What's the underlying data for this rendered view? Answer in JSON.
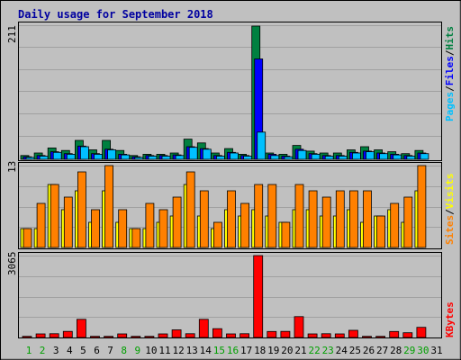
{
  "title": "Daily usage for September 2018",
  "colors": {
    "background": "#c0c0c0",
    "plot_bg": "#c0c0c0",
    "title": "#0000a0",
    "hits": "#008040",
    "files": "#0000ff",
    "pages": "#00c0ff",
    "visits": "#ffff00",
    "sites": "#ff8000",
    "kbytes": "#ff0000",
    "weekend": "#00a000",
    "weekday": "#000000"
  },
  "chart_data": [
    {
      "type": "bar",
      "panel": "top",
      "max_label": "211",
      "ylim": [
        0,
        211
      ],
      "legend": [
        {
          "text": "Pages",
          "color": "#00c0ff"
        },
        {
          "text": "/",
          "color": "#000000"
        },
        {
          "text": "Files",
          "color": "#0000ff"
        },
        {
          "text": "/",
          "color": "#000000"
        },
        {
          "text": "Hits",
          "color": "#008040"
        }
      ],
      "series": [
        {
          "name": "Hits",
          "color": "#008040",
          "values": [
            6,
            10,
            18,
            14,
            30,
            15,
            30,
            14,
            6,
            8,
            8,
            10,
            32,
            26,
            10,
            17,
            8,
            211,
            10,
            8,
            22,
            13,
            10,
            10,
            15,
            20,
            15,
            12,
            9,
            14
          ]
        },
        {
          "name": "Files",
          "color": "#0000ff",
          "values": [
            4,
            6,
            12,
            9,
            21,
            9,
            16,
            8,
            4,
            6,
            6,
            7,
            20,
            17,
            6,
            11,
            6,
            159,
            8,
            5,
            16,
            9,
            6,
            6,
            11,
            13,
            10,
            8,
            6,
            10
          ]
        },
        {
          "name": "Pages",
          "color": "#00c0ff",
          "values": [
            3,
            5,
            11,
            8,
            20,
            8,
            15,
            7,
            3,
            5,
            5,
            6,
            19,
            16,
            5,
            10,
            5,
            43,
            6,
            4,
            14,
            8,
            5,
            5,
            10,
            12,
            9,
            7,
            5,
            9
          ]
        }
      ]
    },
    {
      "type": "bar",
      "panel": "middle",
      "max_label": "13",
      "ylim": [
        0,
        13
      ],
      "legend": [
        {
          "text": "Sites",
          "color": "#ff8000"
        },
        {
          "text": "/",
          "color": "#000000"
        },
        {
          "text": "Visits",
          "color": "#ffff00"
        }
      ],
      "series": [
        {
          "name": "Visits",
          "color": "#ffff00",
          "values": [
            3,
            3,
            10,
            6,
            9,
            4,
            9,
            4,
            3,
            3,
            4,
            5,
            10,
            5,
            3,
            6,
            5,
            6,
            5,
            4,
            6,
            6,
            5,
            5,
            6,
            4,
            5,
            6,
            4,
            9
          ]
        },
        {
          "name": "Sites",
          "color": "#ff8000",
          "values": [
            3,
            7,
            10,
            8,
            12,
            6,
            13,
            6,
            3,
            7,
            6,
            8,
            12,
            9,
            4,
            9,
            7,
            10,
            10,
            4,
            10,
            9,
            8,
            9,
            9,
            9,
            5,
            7,
            8,
            13
          ]
        }
      ]
    },
    {
      "type": "bar",
      "panel": "bottom",
      "max_label": "3065",
      "ylim": [
        0,
        3065
      ],
      "legend": [
        {
          "text": "KBytes",
          "color": "#ff0000"
        }
      ],
      "series": [
        {
          "name": "KBytes",
          "color": "#ff0000",
          "values": [
            45,
            135,
            140,
            230,
            680,
            45,
            45,
            135,
            45,
            45,
            135,
            285,
            140,
            680,
            330,
            135,
            140,
            3065,
            225,
            230,
            780,
            135,
            140,
            135,
            270,
            45,
            45,
            225,
            180,
            380
          ]
        }
      ]
    }
  ],
  "days": [
    "1",
    "2",
    "3",
    "4",
    "5",
    "6",
    "7",
    "8",
    "9",
    "10",
    "11",
    "12",
    "13",
    "14",
    "15",
    "16",
    "17",
    "18",
    "19",
    "20",
    "21",
    "22",
    "23",
    "24",
    "25",
    "26",
    "27",
    "28",
    "29",
    "30",
    "31"
  ],
  "weekend_days": [
    1,
    2,
    8,
    9,
    15,
    16,
    22,
    23,
    29,
    30
  ]
}
